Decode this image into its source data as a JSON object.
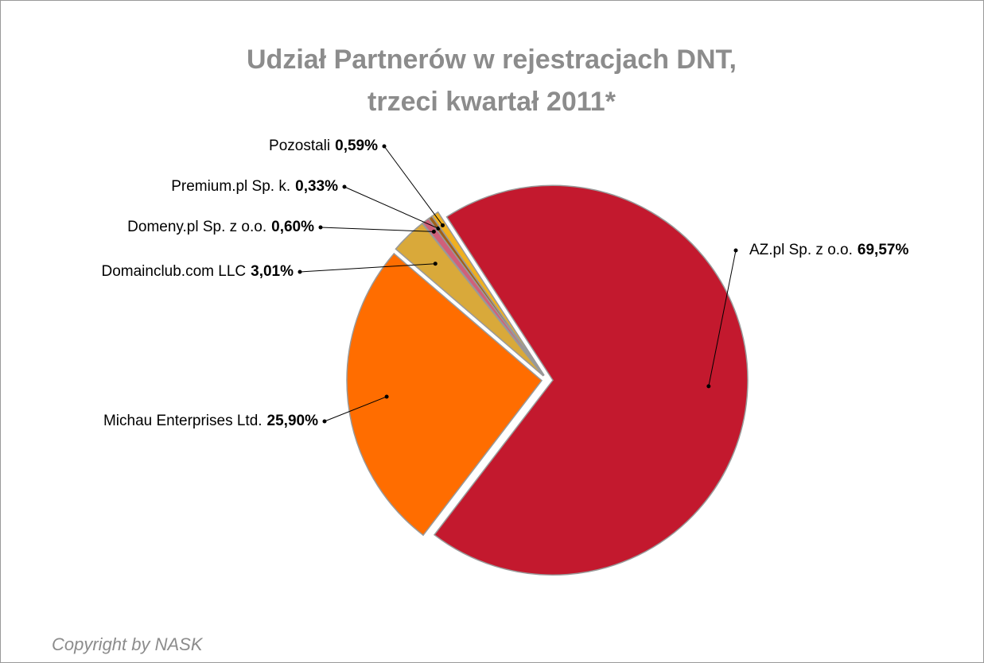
{
  "chart_data": {
    "type": "pie",
    "title": [
      "Udział Partnerów w rejestracjach DNT,",
      "trzeci kwartał 2011*"
    ],
    "categories": [
      "AZ.pl Sp. z o.o.",
      "Michau Enterprises Ltd.",
      "Domainclub.com LLC",
      "Domeny.pl Sp. z o.o.",
      "Premium.pl Sp. k.",
      "Pozostali"
    ],
    "values": [
      69.57,
      25.9,
      3.01,
      0.6,
      0.33,
      0.59
    ],
    "value_labels": [
      "69,57%",
      "25,90%",
      "3,01%",
      "0,60%",
      "0,33%",
      "0,59%"
    ],
    "colors": [
      "#c3192e",
      "#ff6d00",
      "#d9a93a",
      "#d0607a",
      "#a0601a",
      "#f0b020"
    ],
    "footer": "Copyright by NASK"
  }
}
